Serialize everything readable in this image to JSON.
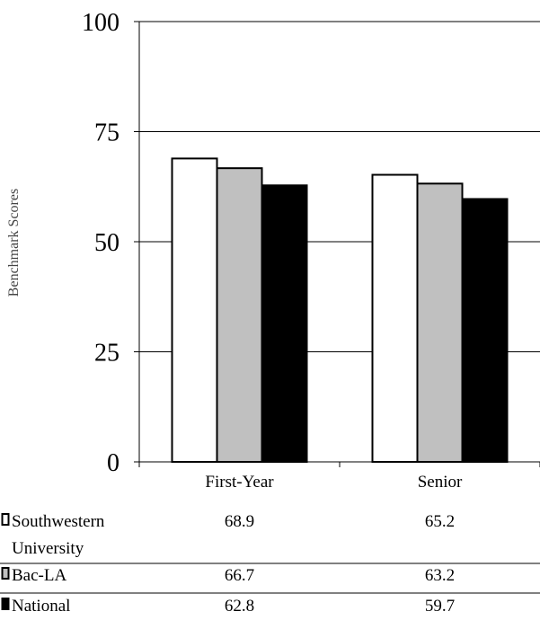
{
  "chart_data": {
    "type": "bar",
    "ylabel": "Benchmark Scores",
    "xlabel": "",
    "title": "",
    "ylim": [
      0,
      100
    ],
    "yticks": [
      0,
      25,
      50,
      75,
      100
    ],
    "grid": true,
    "legend_placement": "table-below",
    "categories": [
      "First-Year",
      "Senior"
    ],
    "series": [
      {
        "name": "Southwestern University",
        "label_lines": [
          "Southwestern",
          "University"
        ],
        "values": [
          68.9,
          65.2
        ],
        "color": "#ffffff"
      },
      {
        "name": "Bac-LA",
        "label_lines": [
          "Bac-LA"
        ],
        "values": [
          66.7,
          63.2
        ],
        "color": "#c0c0c0"
      },
      {
        "name": "National",
        "label_lines": [
          "National"
        ],
        "values": [
          62.8,
          59.7
        ],
        "color": "#000000"
      }
    ]
  }
}
